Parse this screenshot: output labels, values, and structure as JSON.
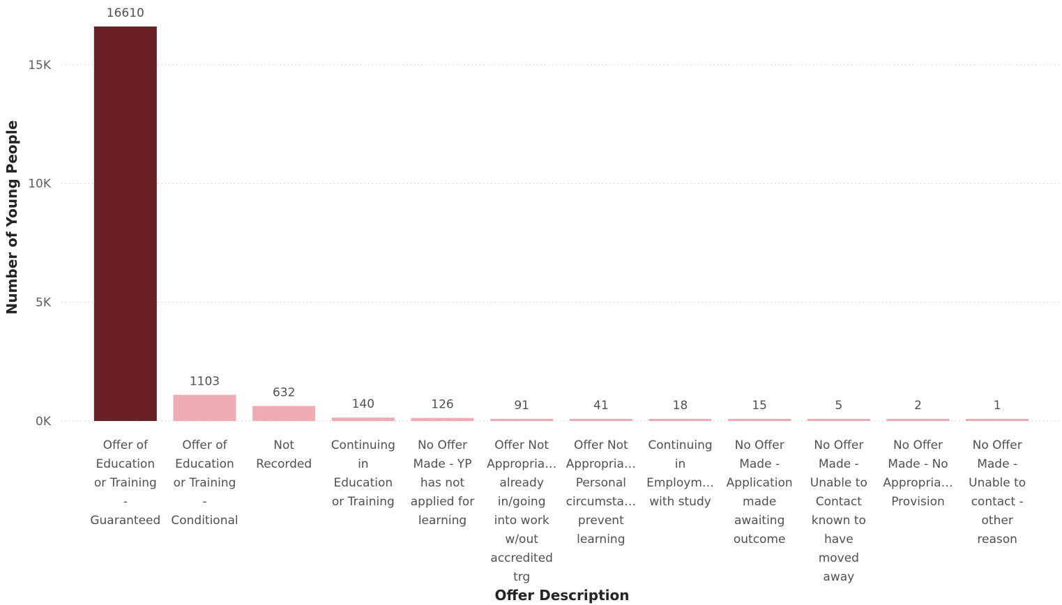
{
  "chart_data": {
    "type": "bar",
    "xlabel": "Offer Description",
    "ylabel": "Number of Young People",
    "ylim": [
      0,
      16610
    ],
    "yticks": [
      {
        "value": 0,
        "label": "0K"
      },
      {
        "value": 5000,
        "label": "5K"
      },
      {
        "value": 10000,
        "label": "10K"
      },
      {
        "value": 15000,
        "label": "15K"
      }
    ],
    "grid": true,
    "categories": [
      "Offer of Education or Training - Guaranteed",
      "Offer of Education or Training - Conditional",
      "Not Recorded",
      "Continuing in Education or Training",
      "No Offer Made - YP has not applied for learning",
      "Offer Not Appropria… already in/going into work w/out accredited trg",
      "Offer Not Appropria… Personal circumsta… prevent learning",
      "Continuing in Employm… with study",
      "No Offer Made - Application made awaiting outcome",
      "No Offer Made - Unable to Contact known to have moved away",
      "No Offer Made - No Appropria… Provision",
      "No Offer Made - Unable to contact - other reason"
    ],
    "category_label_lines": [
      [
        "Offer of",
        "Education",
        "or Training",
        "-",
        "Guaranteed"
      ],
      [
        "Offer of",
        "Education",
        "or Training",
        "-",
        "Conditional"
      ],
      [
        "Not",
        "Recorded"
      ],
      [
        "Continuing",
        "in",
        "Education",
        "or Training"
      ],
      [
        "No Offer",
        "Made - YP",
        "has not",
        "applied for",
        "learning"
      ],
      [
        "Offer Not",
        "Appropria…",
        "already",
        "in/going",
        "into work",
        "w/out",
        "accredited",
        "trg"
      ],
      [
        "Offer Not",
        "Appropria…",
        "Personal",
        "circumsta…",
        "prevent",
        "learning"
      ],
      [
        "Continuing",
        "in",
        "Employm…",
        "with study"
      ],
      [
        "No Offer",
        "Made -",
        "Application",
        "made",
        "awaiting",
        "outcome"
      ],
      [
        "No Offer",
        "Made -",
        "Unable to",
        "Contact",
        "known to",
        "have",
        "moved",
        "away"
      ],
      [
        "No Offer",
        "Made - No",
        "Appropria…",
        "Provision"
      ],
      [
        "No Offer",
        "Made -",
        "Unable to",
        "contact -",
        "other",
        "reason"
      ]
    ],
    "values": [
      16610,
      1103,
      632,
      140,
      126,
      91,
      41,
      18,
      15,
      5,
      2,
      1
    ],
    "data_labels": [
      "16610",
      "1103",
      "632",
      "140",
      "126",
      "91",
      "41",
      "18",
      "15",
      "5",
      "2",
      "1"
    ],
    "colors": {
      "highlight": "#6b1f27",
      "normal": "#eeabb1",
      "grid": "#c8c8c8"
    },
    "highlight_index": 0
  }
}
